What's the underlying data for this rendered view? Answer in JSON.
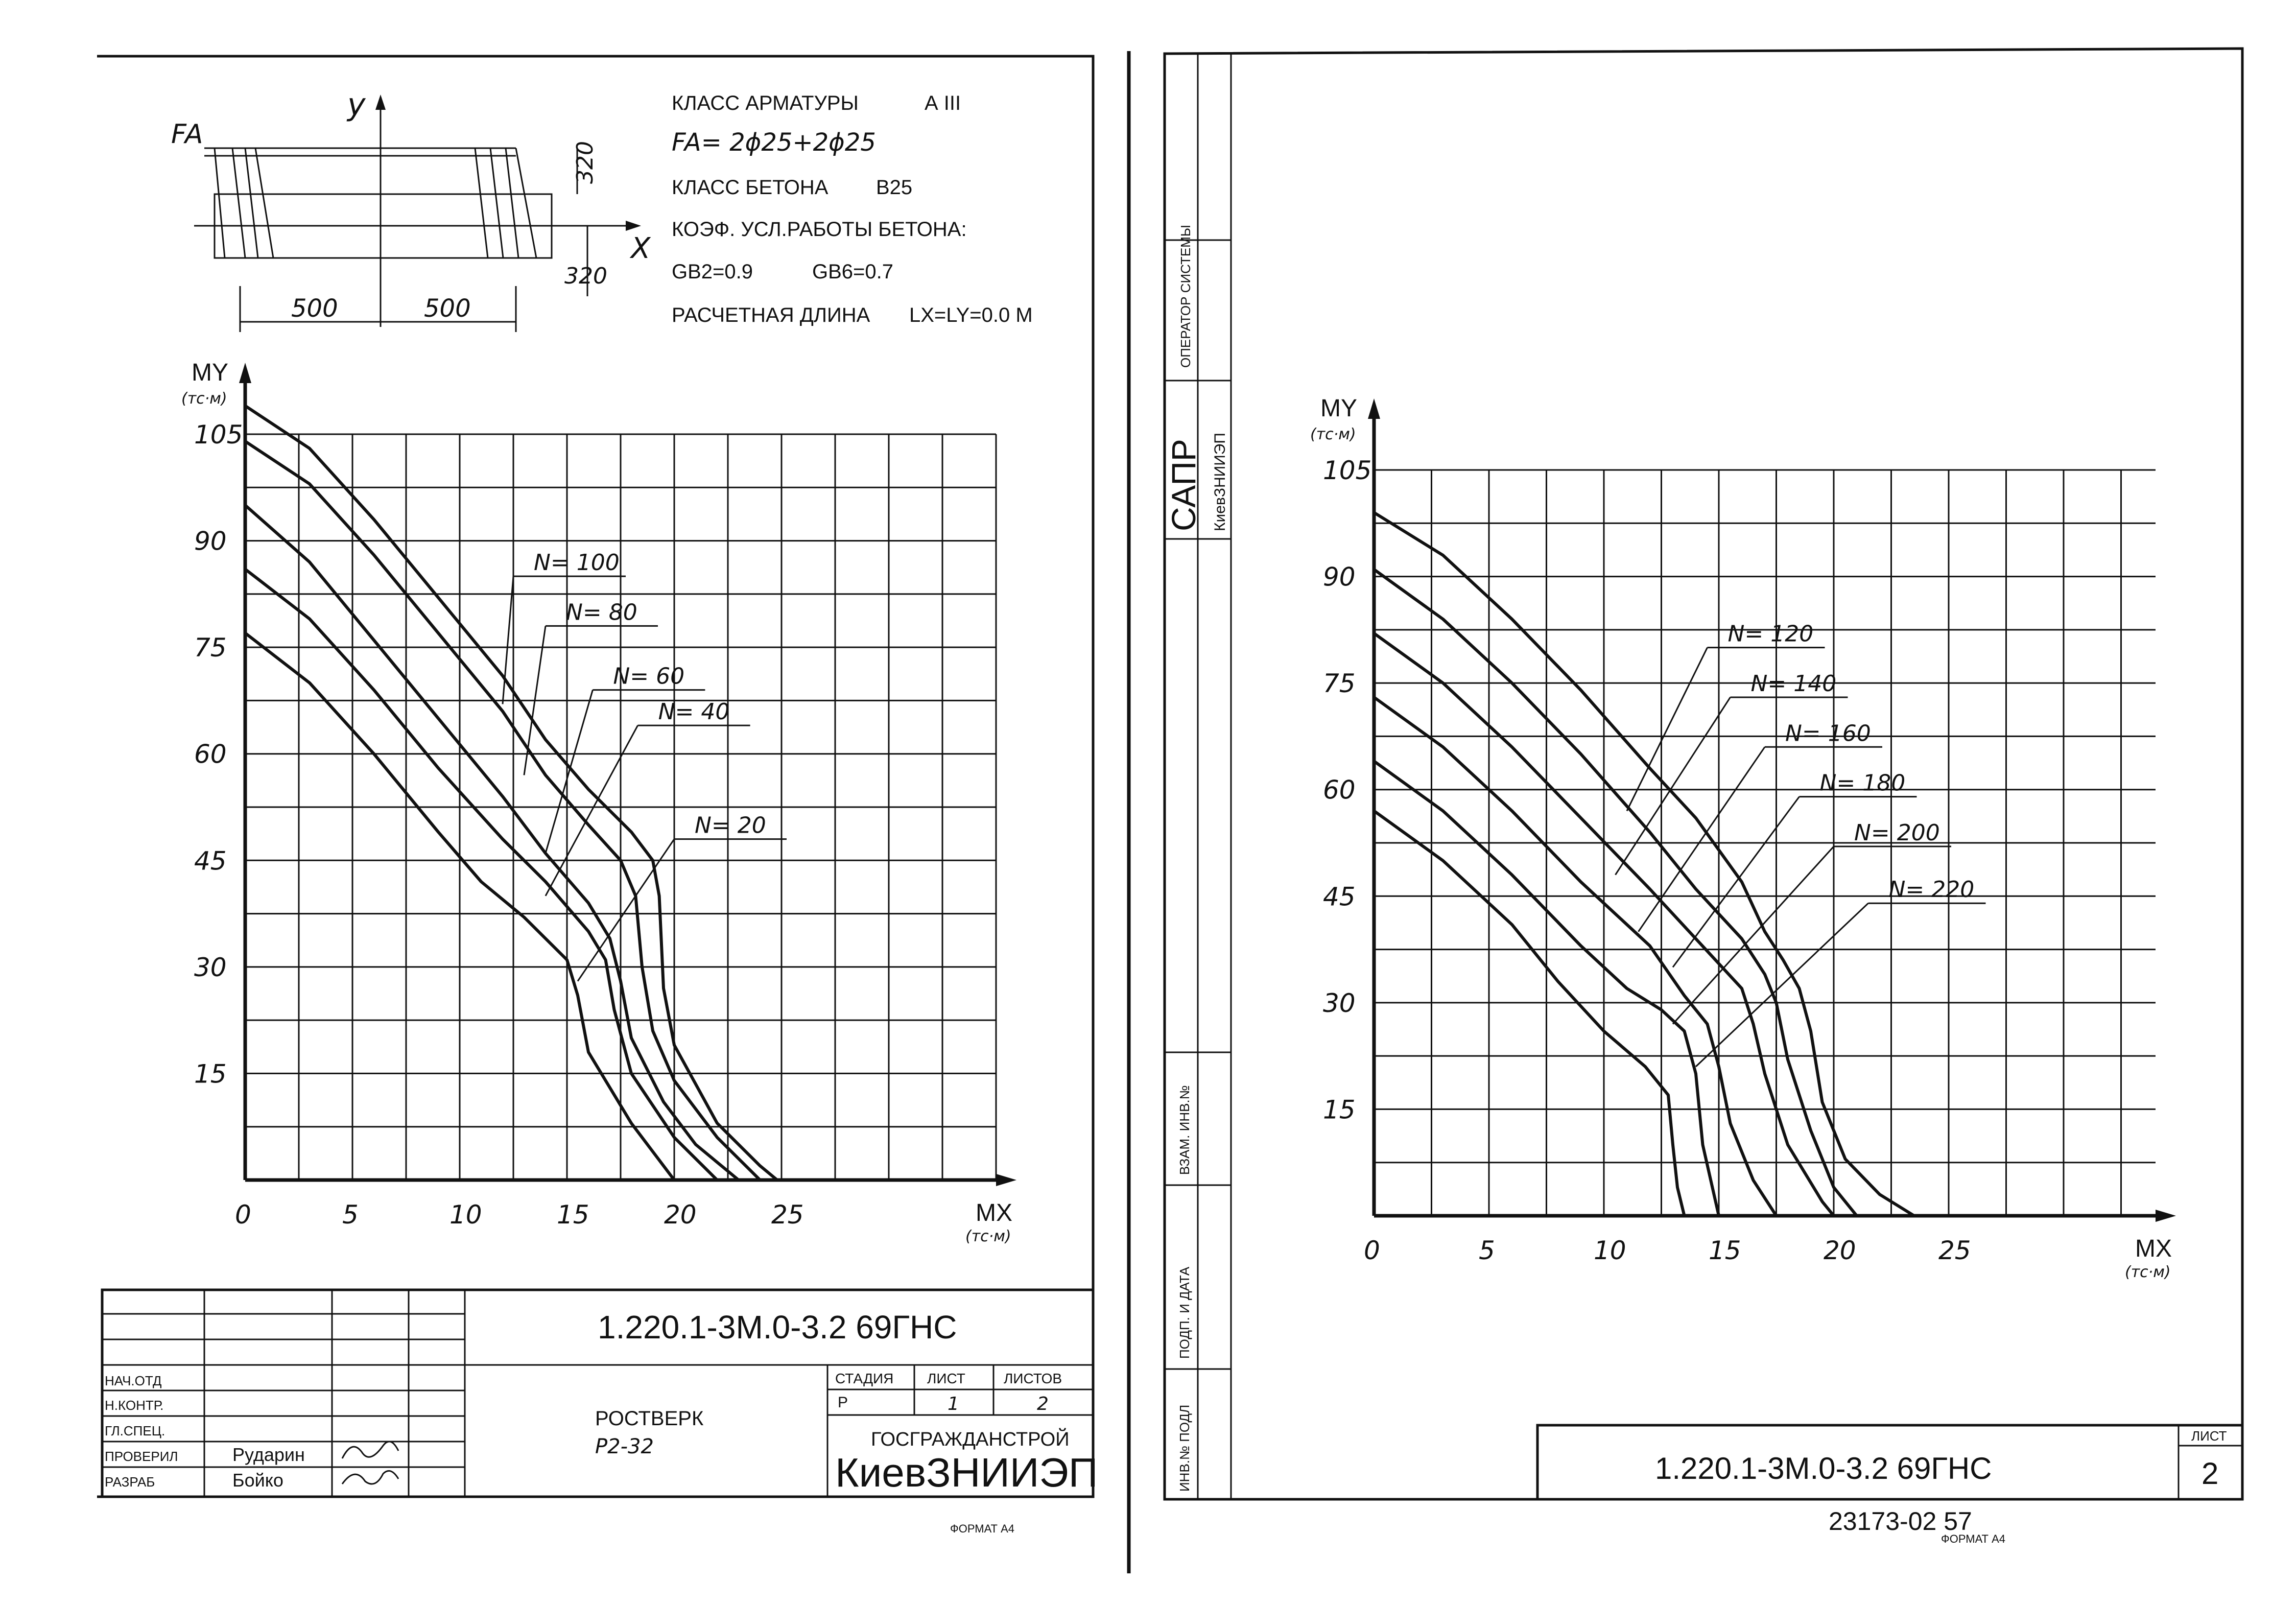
{
  "left_sheet": {
    "section": {
      "fa_label": "FA",
      "y_axis": "y",
      "x_axis": "X",
      "dim_height": "320",
      "dim_offset": "320",
      "dim_left": "500",
      "dim_right": "500"
    },
    "specs": {
      "rebar_class_label": "КЛАСС АРМАТУРЫ",
      "rebar_class_value": "А III",
      "fa_value": "FA= 2ϕ25+2ϕ25",
      "concrete_class_label": "КЛАСС БЕТОНА",
      "concrete_class_value": "В25",
      "coef_label": "КОЭФ. УСЛ.РАБОТЫ БЕТОНА:",
      "gb2": "GB2=0.9",
      "gb6": "GB6=0.7",
      "length_label": "РАСЧЕТНАЯ ДЛИНА",
      "length_value": "LX=LY=0.0 М"
    },
    "title_block": {
      "drawing_code": "1.220.1-3М.0-3.2 69ГНС",
      "roles": [
        "НАЧ.ОТД",
        "Н.КОНТР.",
        "ГЛ.СПЕЦ.",
        "ПРОВЕРИЛ",
        "РАЗРАБ"
      ],
      "names": [
        "",
        "",
        "",
        "Рударин",
        "Бойко"
      ],
      "element_name": "РОСТВЕРК",
      "element_mark": "Р2-32",
      "stage_label": "СТАДИЯ",
      "sheet_label": "ЛИСТ",
      "sheets_label": "ЛИСТОВ",
      "stage_value": "Р",
      "sheet_value": "1",
      "sheets_value": "2",
      "org_top": "ГОСГРАЖДАНСТРОЙ",
      "org_main": "КиевЗНИИЭП",
      "format": "ФОРМАТ А4"
    }
  },
  "right_sheet": {
    "sidebar": {
      "operator": "ОПЕРАТОР СИСТЕМЫ",
      "sapr": "САПР",
      "sapr_org": "КиевЗНИИЭП",
      "vzam": "ВЗАМ. ИНВ.№",
      "podp_data": "ПОДП. И ДАТА",
      "inv_podl": "ИНВ.№ ПОДЛ"
    },
    "title_block": {
      "drawing_code": "1.220.1-3М.0-3.2 69ГНС",
      "sheet_label": "ЛИСТ",
      "sheet_value": "2",
      "stamp_number": "23173-02 57",
      "format": "ФОРМАТ А4"
    }
  },
  "chart_data": [
    {
      "type": "line",
      "xlabel": "MX",
      "xunit": "(тс·м)",
      "ylabel": "MY",
      "yunit": "(тс·м)",
      "xlim": [
        0,
        35
      ],
      "ylim": [
        0,
        105
      ],
      "x_ticks": [
        "0",
        "5",
        "10",
        "15",
        "20",
        "25"
      ],
      "y_ticks": [
        "15",
        "30",
        "45",
        "60",
        "75",
        "90",
        "105"
      ],
      "series": [
        {
          "name": "N= 100",
          "points": [
            [
              0,
              109
            ],
            [
              3,
              103
            ],
            [
              6,
              93
            ],
            [
              9,
              82
            ],
            [
              12,
              71
            ],
            [
              14,
              62
            ],
            [
              16,
              55
            ],
            [
              18,
              49
            ],
            [
              19,
              45
            ],
            [
              19.3,
              40
            ],
            [
              19.5,
              27
            ],
            [
              20,
              19
            ],
            [
              22,
              8
            ],
            [
              24,
              2
            ],
            [
              24.8,
              0
            ]
          ]
        },
        {
          "name": "N= 80",
          "points": [
            [
              0,
              104
            ],
            [
              3,
              98
            ],
            [
              6,
              88
            ],
            [
              9,
              77
            ],
            [
              12,
              66
            ],
            [
              14,
              57
            ],
            [
              16,
              50
            ],
            [
              17.5,
              45
            ],
            [
              18.2,
              40
            ],
            [
              18.5,
              30
            ],
            [
              19,
              21
            ],
            [
              20,
              14
            ],
            [
              22,
              6
            ],
            [
              24,
              0
            ]
          ]
        },
        {
          "name": "N= 60",
          "points": [
            [
              0,
              95
            ],
            [
              3,
              87
            ],
            [
              6,
              76
            ],
            [
              9,
              65
            ],
            [
              12,
              54
            ],
            [
              14,
              46
            ],
            [
              16,
              39
            ],
            [
              17,
              34
            ],
            [
              17.5,
              28
            ],
            [
              18,
              20
            ],
            [
              19.5,
              11
            ],
            [
              21,
              5
            ],
            [
              23,
              0
            ]
          ]
        },
        {
          "name": "N= 40",
          "points": [
            [
              0,
              86
            ],
            [
              3,
              79
            ],
            [
              6,
              69
            ],
            [
              9,
              58
            ],
            [
              12,
              48
            ],
            [
              14,
              42
            ],
            [
              16,
              35
            ],
            [
              16.8,
              31
            ],
            [
              17.2,
              24
            ],
            [
              18,
              15
            ],
            [
              20,
              6
            ],
            [
              22,
              0
            ]
          ]
        },
        {
          "name": "N= 20",
          "points": [
            [
              0,
              77
            ],
            [
              3,
              70
            ],
            [
              6,
              60
            ],
            [
              9,
              49
            ],
            [
              11,
              42
            ],
            [
              13,
              37
            ],
            [
              15,
              31
            ],
            [
              15.5,
              26
            ],
            [
              16,
              18
            ],
            [
              18,
              8
            ],
            [
              19.5,
              2
            ],
            [
              20,
              0
            ]
          ]
        }
      ]
    },
    {
      "type": "line",
      "xlabel": "MX",
      "xunit": "(тс·м)",
      "ylabel": "MY",
      "yunit": "(тс·м)",
      "xlim": [
        0,
        34
      ],
      "ylim": [
        0,
        105
      ],
      "x_ticks": [
        "0",
        "5",
        "10",
        "15",
        "20",
        "25"
      ],
      "y_ticks": [
        "15",
        "30",
        "45",
        "60",
        "75",
        "90",
        "105"
      ],
      "series": [
        {
          "name": "N= 120",
          "points": [
            [
              0,
              99
            ],
            [
              3,
              93
            ],
            [
              6,
              84
            ],
            [
              9,
              74
            ],
            [
              12,
              63
            ],
            [
              14,
              56
            ],
            [
              16,
              47
            ],
            [
              17,
              40
            ],
            [
              17.8,
              36
            ],
            [
              18.5,
              32
            ],
            [
              19,
              26
            ],
            [
              19.5,
              16
            ],
            [
              20.5,
              8
            ],
            [
              22,
              3
            ],
            [
              23.5,
              0
            ]
          ]
        },
        {
          "name": "N= 140",
          "points": [
            [
              0,
              91
            ],
            [
              3,
              84
            ],
            [
              6,
              75
            ],
            [
              9,
              65
            ],
            [
              12,
              54
            ],
            [
              14,
              46
            ],
            [
              16,
              39
            ],
            [
              17,
              34
            ],
            [
              17.5,
              30
            ],
            [
              18,
              22
            ],
            [
              19,
              12
            ],
            [
              20,
              4
            ],
            [
              21,
              0
            ]
          ]
        },
        {
          "name": "N= 160",
          "points": [
            [
              0,
              82
            ],
            [
              3,
              75
            ],
            [
              6,
              66
            ],
            [
              9,
              56
            ],
            [
              12,
              46
            ],
            [
              14,
              39
            ],
            [
              16,
              32
            ],
            [
              16.5,
              27
            ],
            [
              17,
              20
            ],
            [
              18,
              10
            ],
            [
              19.5,
              2
            ],
            [
              20,
              0
            ]
          ]
        },
        {
          "name": "N= 180",
          "points": [
            [
              0,
              73
            ],
            [
              3,
              66
            ],
            [
              6,
              57
            ],
            [
              9,
              47
            ],
            [
              12,
              38
            ],
            [
              13.5,
              31
            ],
            [
              14.5,
              27
            ],
            [
              15,
              21
            ],
            [
              15.5,
              13
            ],
            [
              16.5,
              5
            ],
            [
              17.5,
              0
            ]
          ]
        },
        {
          "name": "N= 200",
          "points": [
            [
              0,
              64
            ],
            [
              3,
              57
            ],
            [
              6,
              48
            ],
            [
              9,
              38
            ],
            [
              11,
              32
            ],
            [
              12.5,
              29
            ],
            [
              13.5,
              26
            ],
            [
              14,
              20
            ],
            [
              14.3,
              10
            ],
            [
              15,
              0
            ]
          ]
        },
        {
          "name": "N= 220",
          "points": [
            [
              0,
              57
            ],
            [
              3,
              50
            ],
            [
              6,
              41
            ],
            [
              8,
              33
            ],
            [
              10,
              26
            ],
            [
              11.8,
              21
            ],
            [
              12.8,
              17
            ],
            [
              13,
              10
            ],
            [
              13.2,
              4
            ],
            [
              13.5,
              0
            ]
          ]
        }
      ]
    }
  ]
}
